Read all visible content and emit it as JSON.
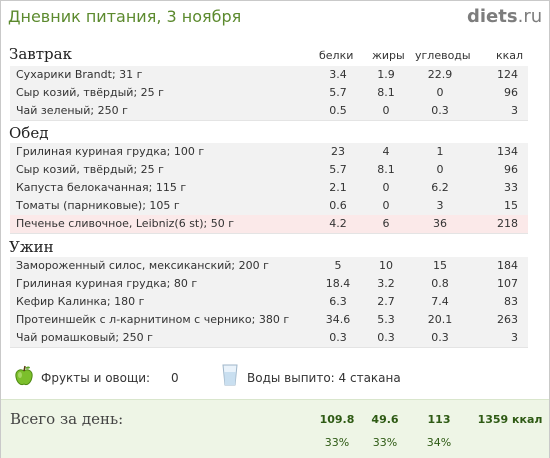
{
  "title": "Дневник питания, 3 ноября",
  "logo": {
    "main": "diets",
    "suffix": ".ru"
  },
  "columns": {
    "protein": "белки",
    "fat": "жиры",
    "carbs": "углеводы",
    "kcal": "ккал"
  },
  "sections": [
    {
      "name": "Завтрак",
      "items": [
        {
          "name": "Сухарики Brandt; 31 г",
          "p": "3.4",
          "f": "1.9",
          "c": "22.9",
          "k": "124"
        },
        {
          "name": "Сыр козий, твёрдый; 25 г",
          "p": "5.7",
          "f": "8.1",
          "c": "0",
          "k": "96"
        },
        {
          "name": "Чай зеленый; 250 г",
          "p": "0.5",
          "f": "0",
          "c": "0.3",
          "k": "3"
        }
      ]
    },
    {
      "name": "Обед",
      "items": [
        {
          "name": "Грилиная куриная грудка; 100 г",
          "p": "23",
          "f": "4",
          "c": "1",
          "k": "134"
        },
        {
          "name": "Сыр козий, твёрдый; 25 г",
          "p": "5.7",
          "f": "8.1",
          "c": "0",
          "k": "96"
        },
        {
          "name": "Капуста белокачанная; 115 г",
          "p": "2.1",
          "f": "0",
          "c": "6.2",
          "k": "33"
        },
        {
          "name": "Томаты (парниковые); 105 г",
          "p": "0.6",
          "f": "0",
          "c": "3",
          "k": "15"
        },
        {
          "name": "Печенье сливочное,  Leibniz(6 st); 50 г",
          "p": "4.2",
          "f": "6",
          "c": "36",
          "k": "218"
        }
      ]
    },
    {
      "name": "Ужин",
      "items": [
        {
          "name": "Замороженный силос, мексиканский; 200 г",
          "p": "5",
          "f": "10",
          "c": "15",
          "k": "184"
        },
        {
          "name": "Грилиная куриная грудка; 80 г",
          "p": "18.4",
          "f": "3.2",
          "c": "0.8",
          "k": "107"
        },
        {
          "name": "Кефир Калинка; 180 г",
          "p": "6.3",
          "f": "2.7",
          "c": "7.4",
          "k": "83"
        },
        {
          "name": "Протеиншейк с л-карнитином с черникo; 380 г",
          "p": "34.6",
          "f": "5.3",
          "c": "20.1",
          "k": "263"
        },
        {
          "name": "Чай ромашковый; 250 г",
          "p": "0.3",
          "f": "0.3",
          "c": "0.3",
          "k": "3"
        }
      ]
    }
  ],
  "fruits": {
    "label": "Фрукты и овощи:",
    "value": "0"
  },
  "water": {
    "label": "Воды выпито: 4 стакана"
  },
  "totals": {
    "label": "Всего за день:",
    "protein": "109.8",
    "fat": "49.6",
    "carbs": "113",
    "kcal": "1359 ккал",
    "protein_pct": "33%",
    "fat_pct": "33%",
    "carbs_pct": "34%"
  },
  "colors": {
    "title": "#5c8a2e",
    "totals_bg": "#eef5e6",
    "highlight_row": "#fbe9e9"
  }
}
